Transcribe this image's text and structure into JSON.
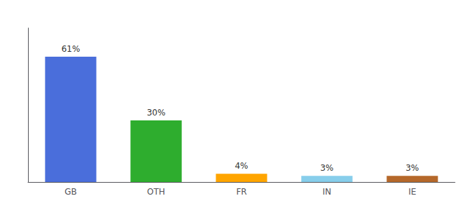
{
  "chart_data": {
    "type": "bar",
    "categories": [
      "GB",
      "OTH",
      "FR",
      "IN",
      "IE"
    ],
    "values": [
      61,
      30,
      4,
      3,
      3
    ],
    "value_labels": [
      "61%",
      "30%",
      "4%",
      "3%",
      "3%"
    ],
    "data_labels": true,
    "colors": [
      "#4A6EDB",
      "#2EAD2E",
      "#FFA500",
      "#87CEEB",
      "#B5682A"
    ],
    "ylim": [
      0,
      75
    ],
    "grid": false,
    "tick_labels": "x"
  }
}
